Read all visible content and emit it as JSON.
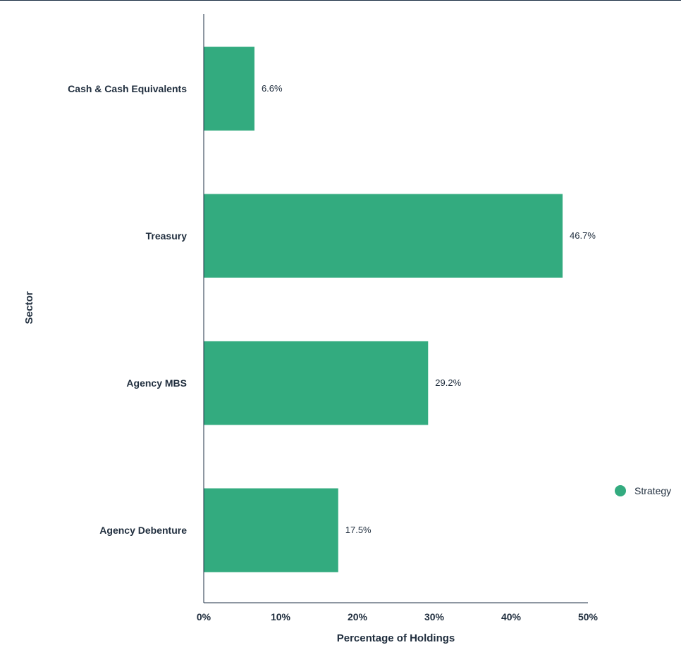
{
  "chart_data": {
    "type": "bar",
    "orientation": "horizontal",
    "categories": [
      "Cash & Cash Equivalents",
      "Treasury",
      "Agency MBS",
      "Agency Debenture"
    ],
    "series": [
      {
        "name": "Strategy",
        "values": [
          6.6,
          46.7,
          29.2,
          17.5
        ]
      }
    ],
    "data_labels": [
      "6.6%",
      "46.7%",
      "29.2%",
      "17.5%"
    ],
    "xlabel": "Percentage of Holdings",
    "ylabel": "Sector",
    "xlim": [
      0,
      50
    ],
    "x_ticks": [
      0,
      10,
      20,
      30,
      40,
      50
    ],
    "x_tick_labels": [
      "0%",
      "10%",
      "20%",
      "30%",
      "40%",
      "50%"
    ],
    "grid": false,
    "legend_position": "right",
    "colors": {
      "bar": "#33ab7f",
      "axis": "#1d2f45",
      "text": "#1f2d3d"
    }
  }
}
